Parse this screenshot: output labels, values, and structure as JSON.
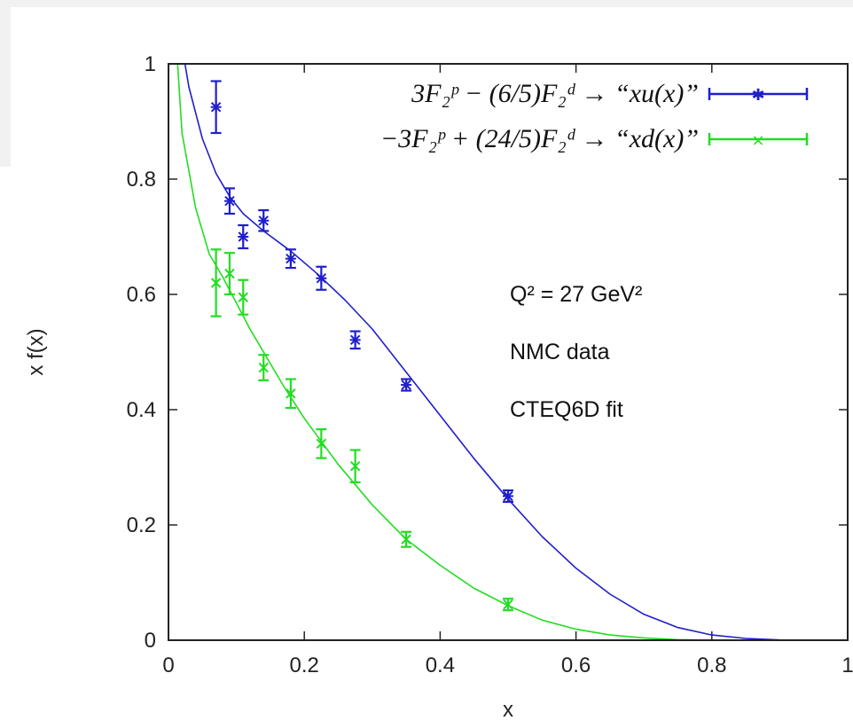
{
  "chart_data": {
    "type": "scatter",
    "xlabel": "x",
    "ylabel": "x f(x)",
    "xlim": [
      0,
      1
    ],
    "ylim": [
      0,
      1
    ],
    "x_ticks": [
      {
        "value": 0,
        "label": "0"
      },
      {
        "value": 0.2,
        "label": "0.2"
      },
      {
        "value": 0.4,
        "label": "0.4"
      },
      {
        "value": 0.6,
        "label": "0.6"
      },
      {
        "value": 0.8,
        "label": "0.8"
      },
      {
        "value": 1,
        "label": "1"
      }
    ],
    "y_ticks": [
      {
        "value": 0,
        "label": "0"
      },
      {
        "value": 0.2,
        "label": "0.2"
      },
      {
        "value": 0.4,
        "label": "0.4"
      },
      {
        "value": 0.6,
        "label": "0.6"
      },
      {
        "value": 0.8,
        "label": "0.8"
      },
      {
        "value": 1,
        "label": "1"
      }
    ],
    "legend_position": "top-right",
    "annotations": [
      {
        "text": "Q² = 27 GeV²"
      },
      {
        "text": "NMC data"
      },
      {
        "text": "CTEQ6D fit"
      }
    ],
    "series": [
      {
        "name": "3F₂ᵖ − (6/5)F₂ᵈ → “xu(x)”",
        "color": "#1f1fcc",
        "marker": "star",
        "points": [
          {
            "x": 0.07,
            "y": 0.925,
            "err": 0.045
          },
          {
            "x": 0.09,
            "y": 0.762,
            "err": 0.022
          },
          {
            "x": 0.11,
            "y": 0.7,
            "err": 0.02
          },
          {
            "x": 0.14,
            "y": 0.728,
            "err": 0.018
          },
          {
            "x": 0.18,
            "y": 0.662,
            "err": 0.016
          },
          {
            "x": 0.225,
            "y": 0.628,
            "err": 0.02
          },
          {
            "x": 0.275,
            "y": 0.521,
            "err": 0.015
          },
          {
            "x": 0.35,
            "y": 0.443,
            "err": 0.01
          },
          {
            "x": 0.5,
            "y": 0.25,
            "err": 0.01
          }
        ],
        "fit": [
          {
            "x": 0.01,
            "y": 1.1
          },
          {
            "x": 0.03,
            "y": 0.96
          },
          {
            "x": 0.05,
            "y": 0.87
          },
          {
            "x": 0.07,
            "y": 0.81
          },
          {
            "x": 0.09,
            "y": 0.77
          },
          {
            "x": 0.11,
            "y": 0.74
          },
          {
            "x": 0.14,
            "y": 0.71
          },
          {
            "x": 0.18,
            "y": 0.675
          },
          {
            "x": 0.22,
            "y": 0.635
          },
          {
            "x": 0.26,
            "y": 0.59
          },
          {
            "x": 0.3,
            "y": 0.54
          },
          {
            "x": 0.35,
            "y": 0.465
          },
          {
            "x": 0.4,
            "y": 0.39
          },
          {
            "x": 0.45,
            "y": 0.315
          },
          {
            "x": 0.5,
            "y": 0.245
          },
          {
            "x": 0.55,
            "y": 0.18
          },
          {
            "x": 0.6,
            "y": 0.125
          },
          {
            "x": 0.65,
            "y": 0.08
          },
          {
            "x": 0.7,
            "y": 0.045
          },
          {
            "x": 0.75,
            "y": 0.022
          },
          {
            "x": 0.8,
            "y": 0.009
          },
          {
            "x": 0.85,
            "y": 0.003
          },
          {
            "x": 0.9,
            "y": 0.0005
          },
          {
            "x": 1.0,
            "y": 0.0
          }
        ]
      },
      {
        "name": "−3F₂ᵖ + (24/5)F₂ᵈ → “xd(x)”",
        "color": "#22dd22",
        "marker": "x",
        "points": [
          {
            "x": 0.07,
            "y": 0.62,
            "err": 0.058
          },
          {
            "x": 0.09,
            "y": 0.636,
            "err": 0.036
          },
          {
            "x": 0.11,
            "y": 0.595,
            "err": 0.03
          },
          {
            "x": 0.14,
            "y": 0.473,
            "err": 0.022
          },
          {
            "x": 0.18,
            "y": 0.428,
            "err": 0.025
          },
          {
            "x": 0.225,
            "y": 0.341,
            "err": 0.025
          },
          {
            "x": 0.275,
            "y": 0.302,
            "err": 0.028
          },
          {
            "x": 0.35,
            "y": 0.175,
            "err": 0.013
          },
          {
            "x": 0.5,
            "y": 0.062,
            "err": 0.01
          }
        ],
        "fit": [
          {
            "x": 0.008,
            "y": 1.1
          },
          {
            "x": 0.02,
            "y": 0.88
          },
          {
            "x": 0.04,
            "y": 0.75
          },
          {
            "x": 0.06,
            "y": 0.67
          },
          {
            "x": 0.08,
            "y": 0.63
          },
          {
            "x": 0.1,
            "y": 0.585
          },
          {
            "x": 0.12,
            "y": 0.54
          },
          {
            "x": 0.14,
            "y": 0.5
          },
          {
            "x": 0.17,
            "y": 0.44
          },
          {
            "x": 0.2,
            "y": 0.385
          },
          {
            "x": 0.25,
            "y": 0.305
          },
          {
            "x": 0.3,
            "y": 0.235
          },
          {
            "x": 0.35,
            "y": 0.175
          },
          {
            "x": 0.4,
            "y": 0.13
          },
          {
            "x": 0.45,
            "y": 0.09
          },
          {
            "x": 0.5,
            "y": 0.06
          },
          {
            "x": 0.55,
            "y": 0.035
          },
          {
            "x": 0.6,
            "y": 0.019
          },
          {
            "x": 0.65,
            "y": 0.009
          },
          {
            "x": 0.7,
            "y": 0.004
          },
          {
            "x": 0.75,
            "y": 0.001
          },
          {
            "x": 0.8,
            "y": 0.0
          },
          {
            "x": 1.0,
            "y": 0.0
          }
        ]
      }
    ]
  }
}
